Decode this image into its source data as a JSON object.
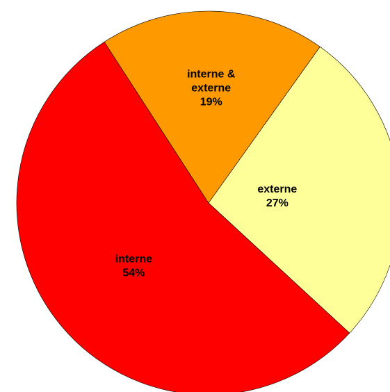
{
  "chart_data": {
    "type": "pie",
    "title": "",
    "slices": [
      {
        "label": [
          "externe"
        ],
        "value": 27,
        "percent_label": "27%",
        "color": "#FFFF99"
      },
      {
        "label": [
          "interne"
        ],
        "value": 54,
        "percent_label": "54%",
        "color": "#FF0000"
      },
      {
        "label": [
          "interne &",
          "externe"
        ],
        "value": 19,
        "percent_label": "19%",
        "color": "#FF9900"
      }
    ],
    "start_angle_deg": 35.5,
    "direction": "clockwise",
    "legend": "none"
  }
}
